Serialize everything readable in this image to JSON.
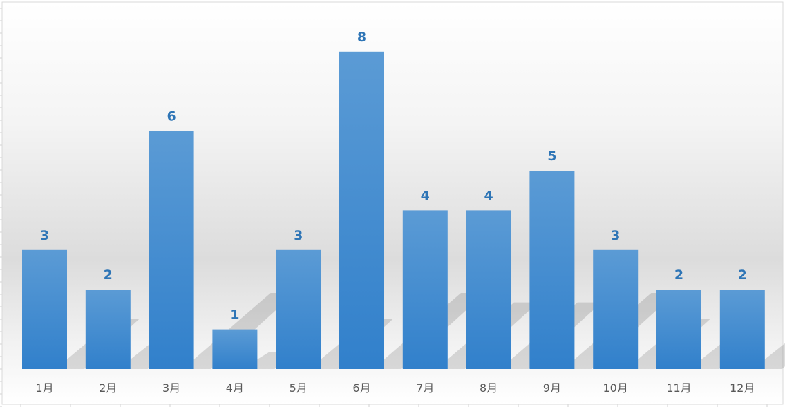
{
  "chart_data": {
    "type": "bar",
    "title": "",
    "xlabel": "",
    "ylabel": "",
    "categories": [
      "1月",
      "2月",
      "3月",
      "4月",
      "5月",
      "6月",
      "7月",
      "8月",
      "9月",
      "10月",
      "11月",
      "12月"
    ],
    "values": [
      3,
      2,
      6,
      1,
      3,
      8,
      4,
      4,
      5,
      3,
      2,
      2
    ],
    "ylim": [
      0,
      9.4
    ],
    "data_labels": true,
    "grid": false,
    "legend": "none",
    "colors": {
      "bar_top": "#5b9bd5",
      "bar_bottom": "#2f7dc8",
      "label": "#2e75b6",
      "tick_label": "#595959"
    }
  }
}
